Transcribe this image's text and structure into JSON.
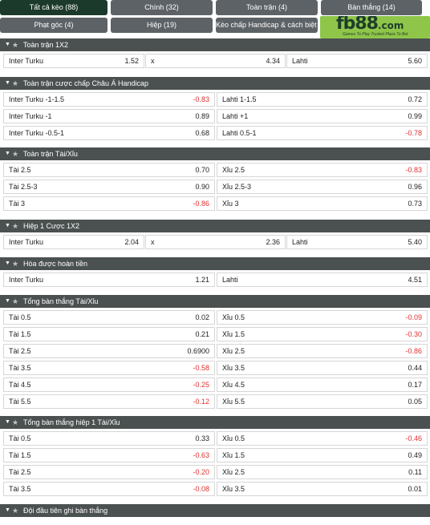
{
  "tabs": [
    {
      "label": "Tất cả kèo (88)",
      "active": true
    },
    {
      "label": "Chính (32)",
      "active": false
    },
    {
      "label": "Toàn trận (4)",
      "active": false
    },
    {
      "label": "Bàn thắng (14)",
      "active": false
    },
    {
      "label": "Phạt góc (4)",
      "active": false
    },
    {
      "label": "Hiệp (19)",
      "active": false
    },
    {
      "label": "Kèo chấp Handicap & cách biệt (3)",
      "active": false
    }
  ],
  "logo": {
    "brand": "fb88",
    "domain": ".com",
    "tagline": "Games To Play  Trusted Place To Bet"
  },
  "sections": [
    {
      "title": "Toàn trận 1X2",
      "rows": [
        [
          {
            "label": "Inter Turku",
            "value": "1.52"
          },
          {
            "label": "x",
            "value": "4.34"
          },
          {
            "label": "Lahti",
            "value": "5.60"
          }
        ]
      ]
    },
    {
      "title": "Toàn trận cược chấp Châu Á Handicap",
      "rows": [
        [
          {
            "label": "Inter Turku",
            "line": "-1-1.5",
            "value": "-0.83"
          },
          {
            "label": "Lahti",
            "line": "1-1.5",
            "value": "0.72"
          }
        ],
        [
          {
            "label": "Inter Turku",
            "line": "-1",
            "value": "0.89"
          },
          {
            "label": "Lahti",
            "line": "+1",
            "value": "0.99"
          }
        ],
        [
          {
            "label": "Inter Turku",
            "line": "-0.5-1",
            "value": "0.68"
          },
          {
            "label": "Lahti",
            "line": "0.5-1",
            "value": "-0.78"
          }
        ]
      ]
    },
    {
      "title": "Toàn trận Tài/Xỉu",
      "rows": [
        [
          {
            "label": "Tài",
            "line": "2.5",
            "value": "0.70"
          },
          {
            "label": "Xỉu",
            "line": "2.5",
            "value": "-0.83"
          }
        ],
        [
          {
            "label": "Tài",
            "line": "2.5-3",
            "value": "0.90"
          },
          {
            "label": "Xỉu",
            "line": "2.5-3",
            "value": "0.96"
          }
        ],
        [
          {
            "label": "Tài",
            "line": "3",
            "value": "-0.86"
          },
          {
            "label": "Xỉu",
            "line": "3",
            "value": "0.73"
          }
        ]
      ]
    },
    {
      "title": "Hiệp 1 Cược 1X2",
      "rows": [
        [
          {
            "label": "Inter Turku",
            "value": "2.04"
          },
          {
            "label": "x",
            "value": "2.36"
          },
          {
            "label": "Lahti",
            "value": "5.40"
          }
        ]
      ]
    },
    {
      "title": "Hòa được hoàn tiền",
      "rows": [
        [
          {
            "label": "Inter Turku",
            "value": "1.21"
          },
          {
            "label": "Lahti",
            "value": "4.51"
          }
        ]
      ]
    },
    {
      "title": "Tổng bàn thắng Tài/Xỉu",
      "rows": [
        [
          {
            "label": "Tài",
            "line": "0.5",
            "value": "0.02"
          },
          {
            "label": "Xỉu",
            "line": "0.5",
            "value": "-0.09"
          }
        ],
        [
          {
            "label": "Tài",
            "line": "1.5",
            "value": "0.21"
          },
          {
            "label": "Xỉu",
            "line": "1.5",
            "value": "-0.30"
          }
        ],
        [
          {
            "label": "Tài",
            "line": "2.5",
            "value": "0.6900"
          },
          {
            "label": "Xỉu",
            "line": "2.5",
            "value": "-0.86"
          }
        ],
        [
          {
            "label": "Tài",
            "line": "3.5",
            "value": "-0.58"
          },
          {
            "label": "Xỉu",
            "line": "3.5",
            "value": "0.44"
          }
        ],
        [
          {
            "label": "Tài",
            "line": "4.5",
            "value": "-0.25"
          },
          {
            "label": "Xỉu",
            "line": "4.5",
            "value": "0.17"
          }
        ],
        [
          {
            "label": "Tài",
            "line": "5.5",
            "value": "-0.12"
          },
          {
            "label": "Xỉu",
            "line": "5.5",
            "value": "0.05"
          }
        ]
      ]
    },
    {
      "title": "Tổng bàn thắng hiệp 1 Tài/Xỉu",
      "rows": [
        [
          {
            "label": "Tài",
            "line": "0.5",
            "value": "0.33"
          },
          {
            "label": "Xỉu",
            "line": "0.5",
            "value": "-0.46"
          }
        ],
        [
          {
            "label": "Tài",
            "line": "1.5",
            "value": "-0.63"
          },
          {
            "label": "Xỉu",
            "line": "1.5",
            "value": "0.49"
          }
        ],
        [
          {
            "label": "Tài",
            "line": "2.5",
            "value": "-0.20"
          },
          {
            "label": "Xỉu",
            "line": "2.5",
            "value": "0.11"
          }
        ],
        [
          {
            "label": "Tài",
            "line": "3.5",
            "value": "-0.08"
          },
          {
            "label": "Xỉu",
            "line": "3.5",
            "value": "0.01"
          }
        ]
      ]
    },
    {
      "title": "Đội đầu tiên ghi bàn thắng",
      "rows": []
    }
  ],
  "colors": {
    "header": "#4b5150",
    "tab": "#5d6266",
    "tab_active": "#1c3a2c",
    "negative": "#e03131",
    "logo_bg": "#8fc64a"
  },
  "icons": {
    "collapse": "chevron-down-icon",
    "favorite": "star-icon"
  }
}
